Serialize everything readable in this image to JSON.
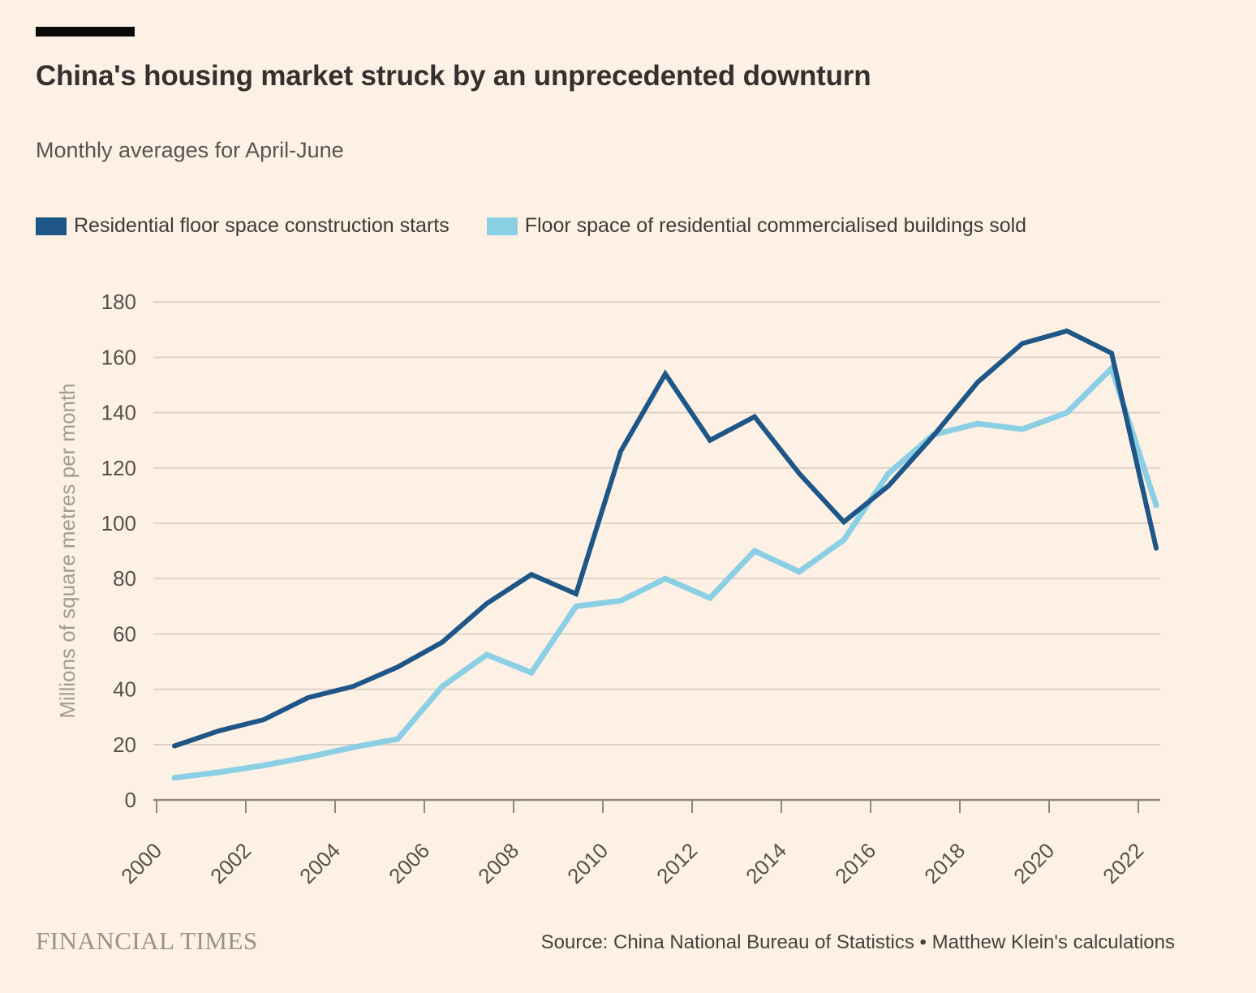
{
  "header": {
    "title": "China's housing market struck by an unprecedented downturn",
    "subtitle": "Monthly averages for April-June"
  },
  "chart_data": {
    "type": "line",
    "title": "China's housing market struck by an unprecedented downturn",
    "subtitle": "Monthly averages for April-June",
    "ylabel": "Millions of square metres per month",
    "xlabel": "",
    "ylim": [
      0,
      180
    ],
    "yticks": [
      0,
      20,
      40,
      60,
      80,
      100,
      120,
      140,
      160,
      180
    ],
    "xticks": [
      2000,
      2002,
      2004,
      2006,
      2008,
      2010,
      2012,
      2014,
      2016,
      2018,
      2020,
      2022
    ],
    "x": [
      2000,
      2001,
      2002,
      2003,
      2004,
      2005,
      2006,
      2007,
      2008,
      2009,
      2010,
      2011,
      2012,
      2013,
      2014,
      2015,
      2016,
      2017,
      2018,
      2019,
      2020,
      2021,
      2022
    ],
    "grid": "horizontal",
    "legend_position": "top-left",
    "series": [
      {
        "name": "Residential floor space construction starts",
        "color": "#1D5687",
        "values": [
          19.5,
          25,
          29,
          37,
          41,
          48,
          57,
          71,
          81.5,
          74.5,
          126,
          154,
          130,
          138.5,
          118,
          100.5,
          113.5,
          131.5,
          151,
          165,
          169.5,
          161.5,
          91
        ]
      },
      {
        "name": "Floor space of residential commercialised buildings sold",
        "color": "#8BCFE5",
        "values": [
          8,
          10,
          12.5,
          15.5,
          19,
          22,
          41,
          52.5,
          46,
          70,
          72,
          80,
          73,
          90,
          82.5,
          94,
          118,
          132,
          136,
          134,
          140,
          156,
          106.5
        ]
      }
    ],
    "colors": {
      "background": "#FDF1E5",
      "gridline": "#D8CCC1",
      "axis_line": "#8F8880",
      "tick_text": "#57514B",
      "y_axis_label": "#A39C94"
    }
  },
  "footer": {
    "brand": "FINANCIAL TIMES",
    "source": "Source: China National Bureau of Statistics • Matthew Klein's calculations"
  }
}
